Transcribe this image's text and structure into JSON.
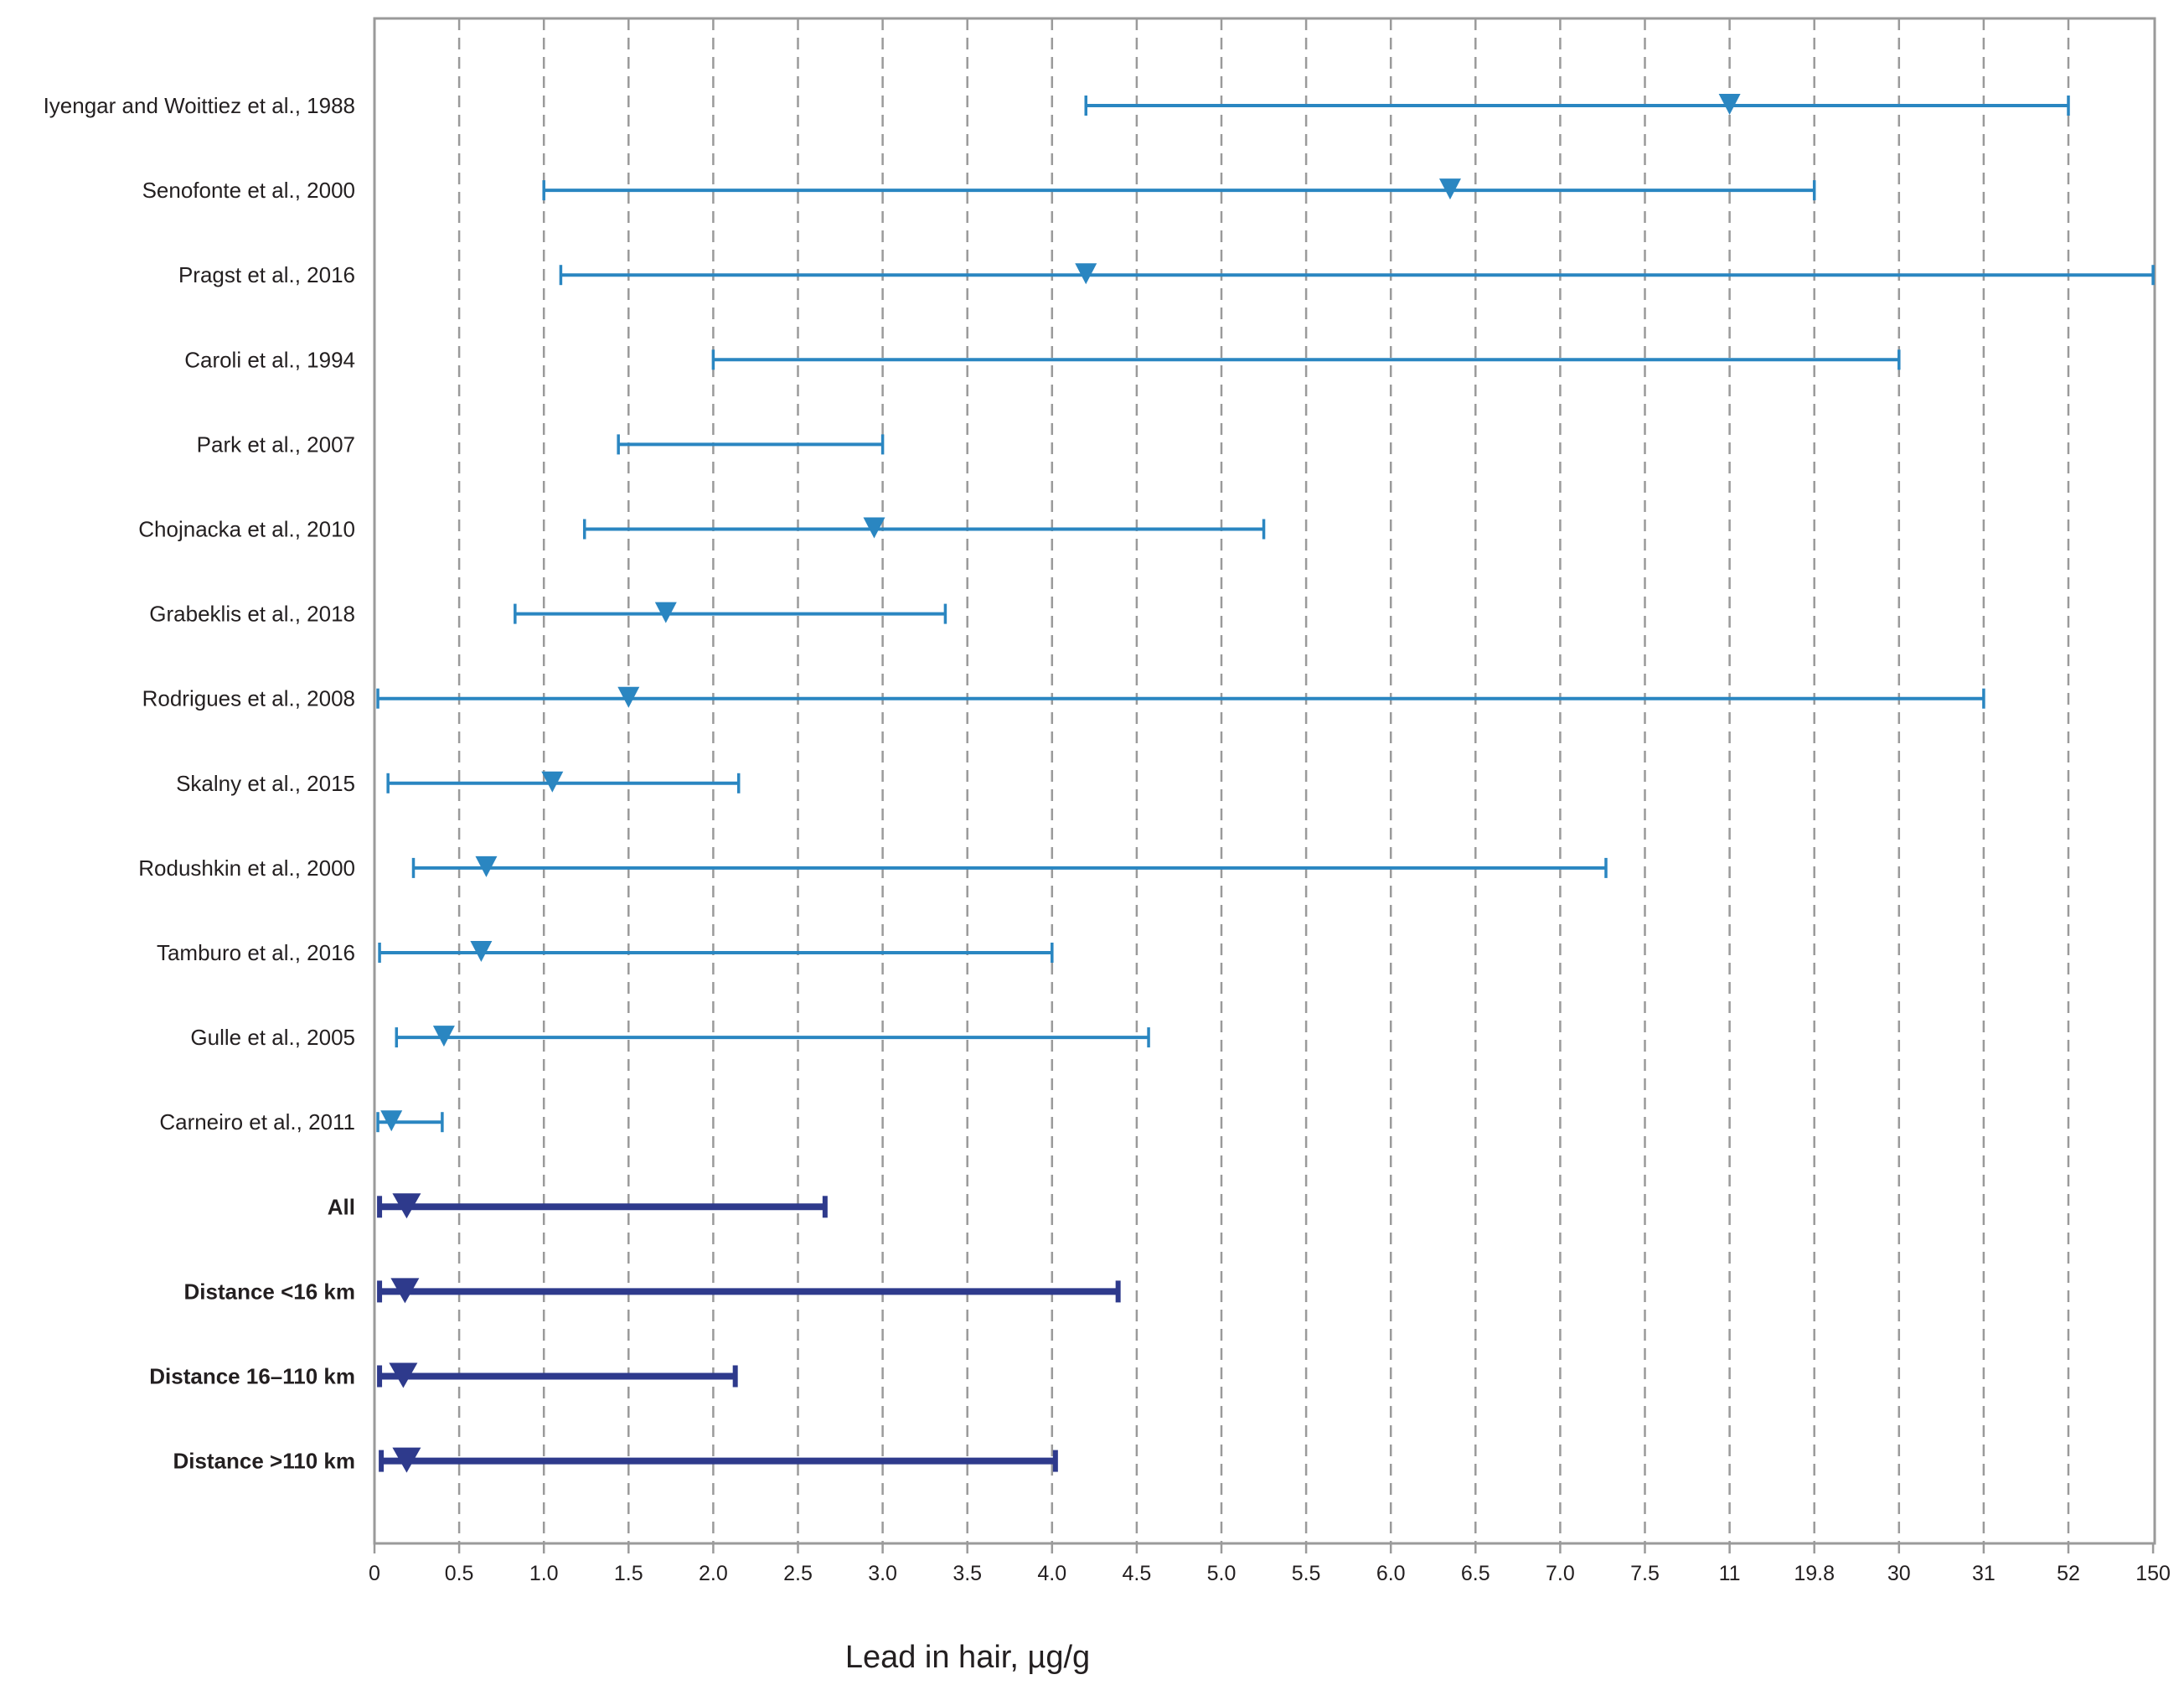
{
  "chart_data": {
    "type": "range_plot",
    "title": "",
    "xlabel": "Lead in hair, µg/g",
    "ylabel": "",
    "grid": true,
    "x_scale": "categorical-ordinal (non-linear tick spacing)",
    "x_ticks": [
      "0",
      "0.5",
      "1.0",
      "1.5",
      "2.0",
      "2.5",
      "3.0",
      "3.5",
      "4.0",
      "4.5",
      "5.0",
      "5.5",
      "6.0",
      "6.5",
      "7.0",
      "7.5",
      "11",
      "19.8",
      "30",
      "31",
      "52",
      "150"
    ],
    "colors": {
      "study": "#2a86c1",
      "summary": "#2e3a8c",
      "grid": "#9a9a9a",
      "axis": "#9a9a9a"
    },
    "rows": [
      {
        "label": "Iyengar and Woittiez et al., 1988",
        "group": "study",
        "min": 4.2,
        "max": 52,
        "median": 11
      },
      {
        "label": "Senofonte et al., 2000",
        "group": "study",
        "min": 1.0,
        "max": 19.8,
        "median": 6.35
      },
      {
        "label": "Pragst et al., 2016",
        "group": "study",
        "min": 1.1,
        "max": 150,
        "median": 4.2
      },
      {
        "label": "Caroli et al., 1994",
        "group": "study",
        "min": 2.0,
        "max": 30,
        "median": null
      },
      {
        "label": "Park et al., 2007",
        "group": "study",
        "min": 1.44,
        "max": 3.0,
        "median": null
      },
      {
        "label": "Chojnacka et al., 2010",
        "group": "study",
        "min": 1.24,
        "max": 5.25,
        "median": 2.95
      },
      {
        "label": "Grabeklis et al., 2018",
        "group": "study",
        "min": 0.83,
        "max": 3.37,
        "median": 1.72
      },
      {
        "label": "Rodrigues et al., 2008",
        "group": "study",
        "min": 0.02,
        "max": 31,
        "median": 1.5
      },
      {
        "label": "Skalny et al., 2015",
        "group": "study",
        "min": 0.08,
        "max": 2.15,
        "median": 1.05
      },
      {
        "label": "Rodushkin et al., 2000",
        "group": "study",
        "min": 0.23,
        "max": 7.27,
        "median": 0.66
      },
      {
        "label": "Tamburo et al., 2016",
        "group": "study",
        "min": 0.03,
        "max": 4.0,
        "median": 0.63
      },
      {
        "label": "Gulle et al., 2005",
        "group": "study",
        "min": 0.13,
        "max": 4.57,
        "median": 0.41
      },
      {
        "label": "Carneiro et al., 2011",
        "group": "study",
        "min": 0.02,
        "max": 0.4,
        "median": 0.1
      },
      {
        "label": "All",
        "group": "summary",
        "min": 0.03,
        "max": 2.66,
        "median": 0.19
      },
      {
        "label": "Distance <16 km",
        "group": "summary",
        "min": 0.03,
        "max": 4.39,
        "median": 0.18
      },
      {
        "label": "Distance 16–110 km",
        "group": "summary",
        "min": 0.03,
        "max": 2.13,
        "median": 0.17
      },
      {
        "label": "Distance >110 km",
        "group": "summary",
        "min": 0.04,
        "max": 4.02,
        "median": 0.19
      }
    ]
  }
}
